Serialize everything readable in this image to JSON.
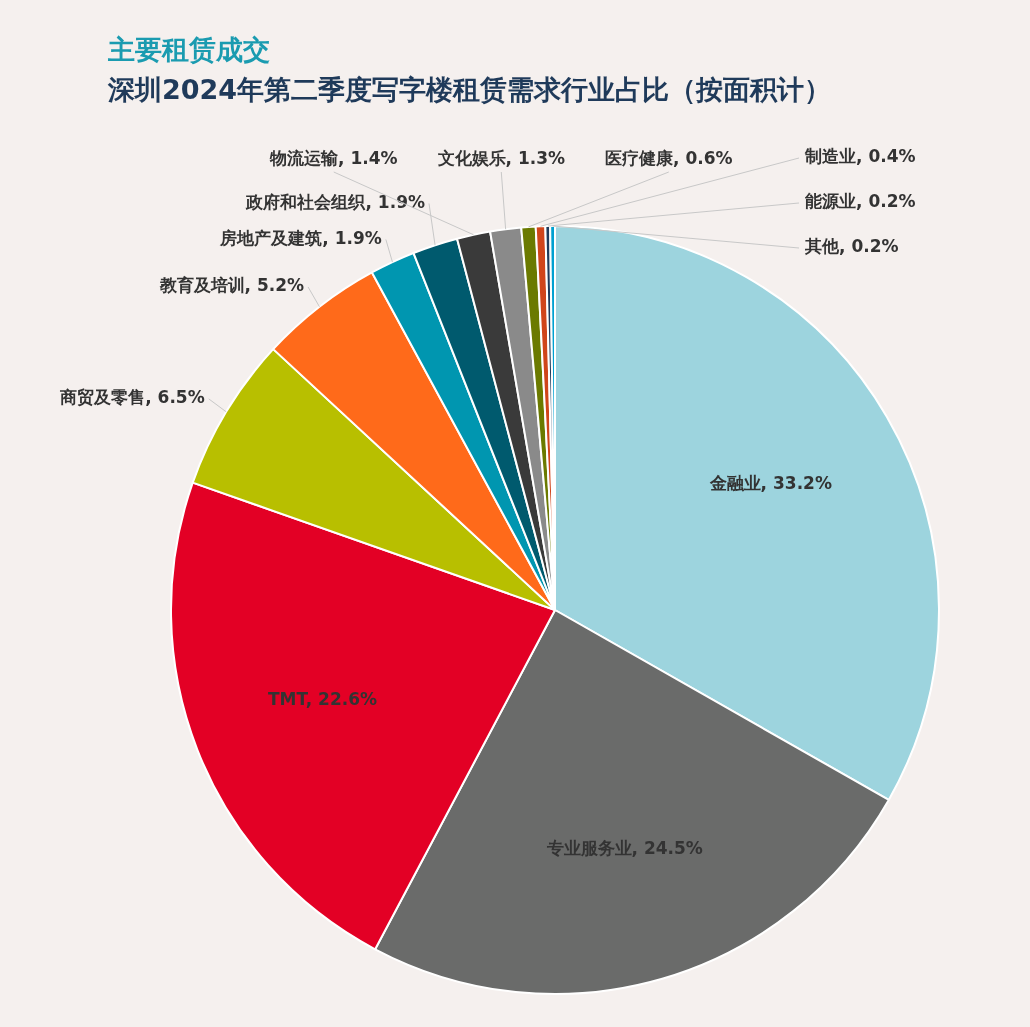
{
  "chart_data": {
    "type": "pie",
    "title": "主要租赁成交",
    "subtitle": "深圳2024年第二季度写字楼租赁需求行业占比（按面积计）",
    "categories": [
      "金融业",
      "专业服务业",
      "TMT",
      "商贸及零售",
      "教育及培训",
      "房地产及建筑",
      "政府和社会组织",
      "物流运输",
      "文化娱乐",
      "医疗健康",
      "制造业",
      "能源业",
      "其他"
    ],
    "values": [
      33.2,
      24.5,
      22.6,
      6.5,
      5.2,
      1.9,
      1.9,
      1.4,
      1.3,
      0.6,
      0.4,
      0.2,
      0.2
    ],
    "colors": [
      "#9dd4de",
      "#6a6b6a",
      "#e30025",
      "#b8bf00",
      "#ff6a1a",
      "#0096b0",
      "#005a6e",
      "#3a3a3a",
      "#8a8a8a",
      "#6b7a00",
      "#d0451b",
      "#1f3a5a",
      "#00a0d0"
    ],
    "value_labels": [
      "33.2%",
      "24.5%",
      "22.6%",
      "6.5%",
      "5.2%",
      "1.9%",
      "1.9%",
      "1.4%",
      "1.3%",
      "0.6%",
      "0.4%",
      "0.2%",
      "0.2%"
    ]
  }
}
